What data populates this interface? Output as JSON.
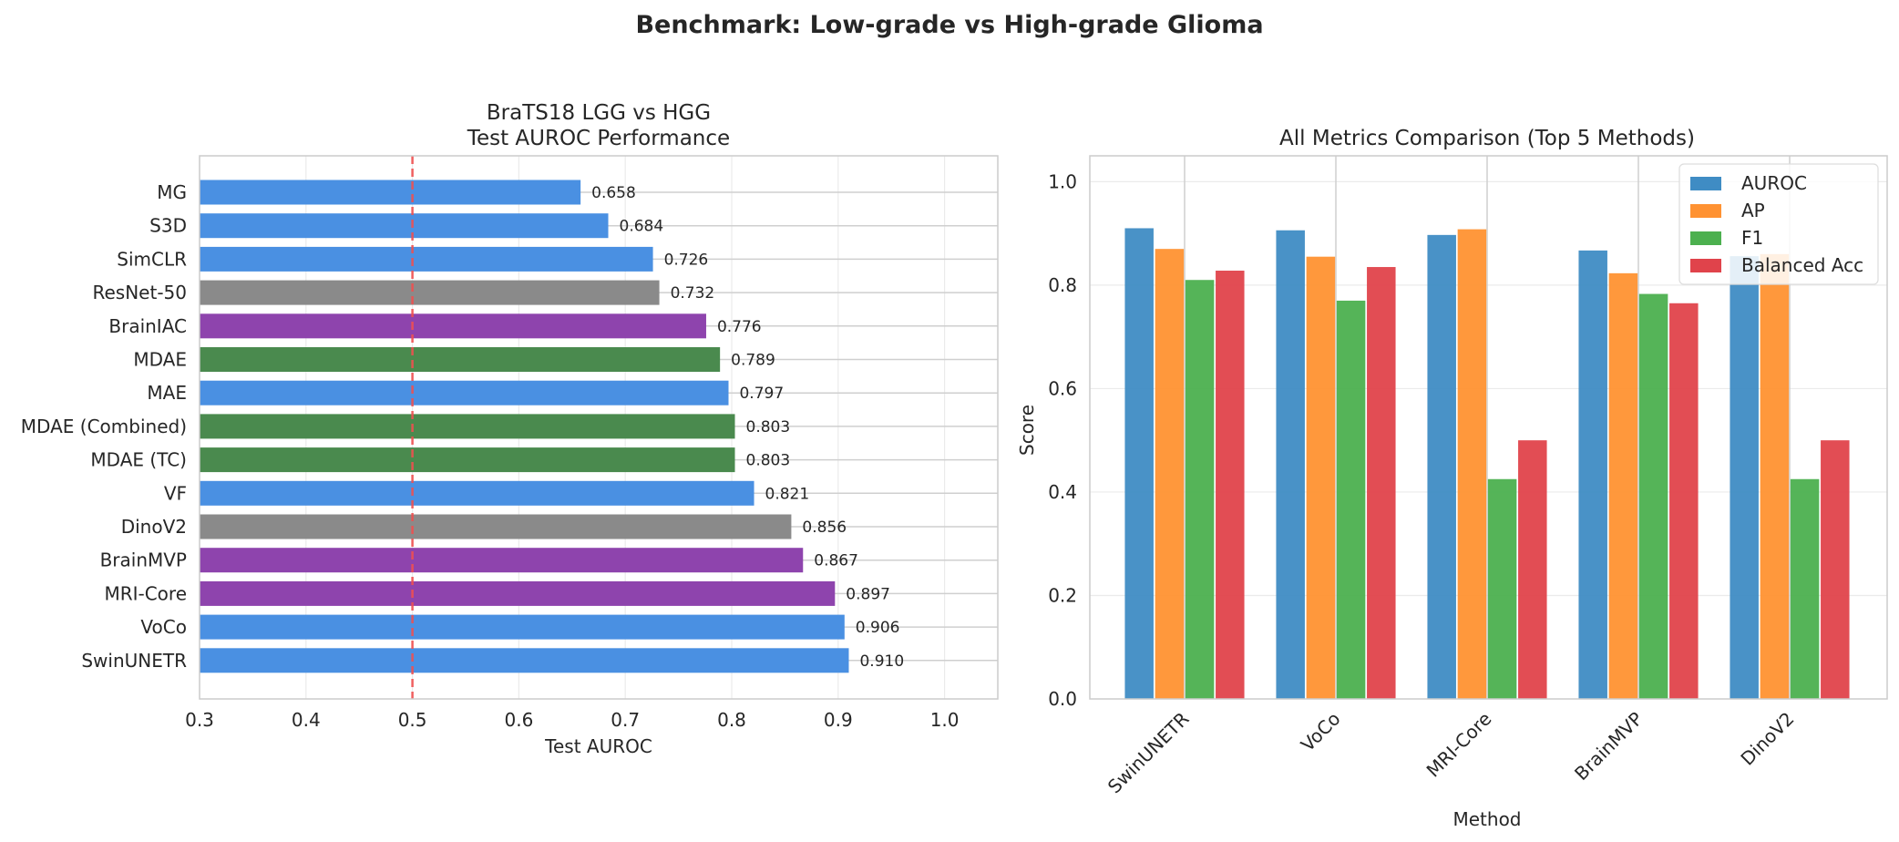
{
  "figure": {
    "title": "Benchmark: Low-grade vs High-grade Glioma"
  },
  "chart_data": [
    {
      "type": "bar",
      "orientation": "horizontal",
      "title": "BraTS18 LGG vs HGG\nTest AUROC Performance",
      "xlabel": "Test AUROC",
      "ylabel": "",
      "xlim": [
        0.3,
        1.05
      ],
      "xticks": [
        "0.3",
        "0.4",
        "0.5",
        "0.6",
        "0.7",
        "0.8",
        "0.9",
        "1.0"
      ],
      "grid": true,
      "reference_line": {
        "x": 0.5,
        "color": "#f05050",
        "style": "dashed"
      },
      "categories": [
        "MG",
        "S3D",
        "SimCLR",
        "ResNet-50",
        "BrainIAC",
        "MDAE",
        "MAE",
        "MDAE (Combined)",
        "MDAE (TC)",
        "VF",
        "DinoV2",
        "BrainMVP",
        "MRI-Core",
        "VoCo",
        "SwinUNETR"
      ],
      "values": [
        0.658,
        0.684,
        0.726,
        0.732,
        0.776,
        0.789,
        0.797,
        0.803,
        0.803,
        0.821,
        0.856,
        0.867,
        0.897,
        0.906,
        0.91
      ],
      "value_labels": [
        "0.658",
        "0.684",
        "0.726",
        "0.732",
        "0.776",
        "0.789",
        "0.797",
        "0.803",
        "0.803",
        "0.821",
        "0.856",
        "0.867",
        "0.897",
        "0.906",
        "0.910"
      ],
      "bar_colors": [
        "#4a90e2",
        "#4a90e2",
        "#4a90e2",
        "#8a8a8a",
        "#8e44ad",
        "#4a8a4e",
        "#4a90e2",
        "#4a8a4e",
        "#4a8a4e",
        "#4a90e2",
        "#8a8a8a",
        "#8e44ad",
        "#8e44ad",
        "#4a90e2",
        "#4a90e2"
      ]
    },
    {
      "type": "bar",
      "orientation": "vertical",
      "grouped": true,
      "title": "All Metrics Comparison (Top 5 Methods)",
      "xlabel": "Method",
      "ylabel": "Score",
      "ylim": [
        0,
        1.05
      ],
      "yticks": [
        "0.0",
        "0.2",
        "0.4",
        "0.6",
        "0.8",
        "1.0"
      ],
      "grid": true,
      "legend_position": "top-right",
      "categories": [
        "SwinUNETR",
        "VoCo",
        "MRI-Core",
        "BrainMVP",
        "DinoV2"
      ],
      "series": [
        {
          "name": "AUROC",
          "color": "#3f8cc4",
          "values": [
            0.91,
            0.906,
            0.897,
            0.867,
            0.856
          ]
        },
        {
          "name": "AP",
          "color": "#ff9232",
          "values": [
            0.87,
            0.855,
            0.908,
            0.823,
            0.86
          ]
        },
        {
          "name": "F1",
          "color": "#4cb04f",
          "values": [
            0.81,
            0.77,
            0.425,
            0.783,
            0.425
          ]
        },
        {
          "name": "Balanced Acc",
          "color": "#e0434b",
          "values": [
            0.828,
            0.835,
            0.5,
            0.765,
            0.5
          ]
        }
      ]
    }
  ]
}
